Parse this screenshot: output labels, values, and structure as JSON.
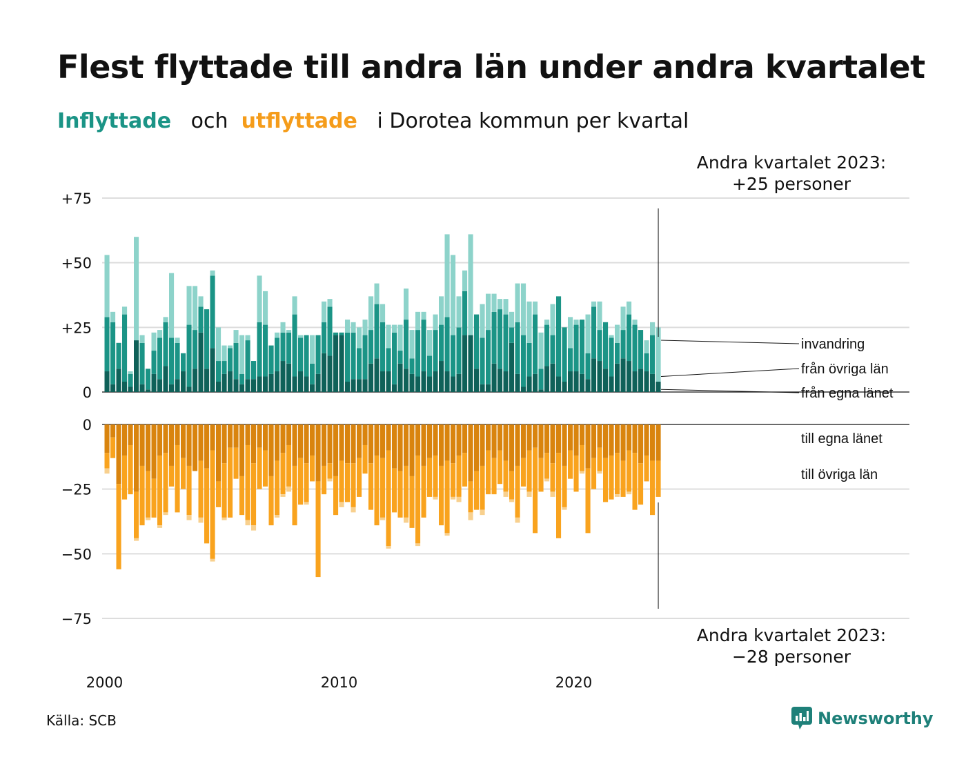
{
  "title": "Flest flyttade till andra län under andra kvartalet",
  "subtitle": {
    "in": "Inflyttade",
    "och": "och",
    "out": "utflyttade",
    "rest": "i Dorotea kommun per kvartal"
  },
  "source": "Källa: SCB",
  "logo": "Newsworthy",
  "colors": {
    "in_own": "#0f6159",
    "in_other": "#1b9486",
    "in_immig": "#8dd3ca",
    "out_own": "#d9840e",
    "out_other": "#f9a31e",
    "out_emig": "#f8d08e"
  },
  "chart_data": {
    "type": "bar",
    "subtype": "stacked, diverging (inflow up / outflow down)",
    "x_start": "2000 Q1",
    "x_labels": [
      "2000",
      "2010",
      "2020"
    ],
    "y_ticks_top": [
      "+75",
      "+50",
      "+25",
      "0"
    ],
    "y_ticks_bottom": [
      "0",
      "−25",
      "−50",
      "−75"
    ],
    "ylim_top": [
      0,
      75
    ],
    "ylim_bottom": [
      -75,
      0
    ],
    "legend_in": [
      "invandring",
      "från övriga län",
      "från egna länet"
    ],
    "legend_out": [
      "till egna länet",
      "till övriga län"
    ],
    "annotation_top": [
      "Andra kvartalet 2023:",
      "+25 personer"
    ],
    "annotation_bottom": [
      "Andra kvartalet 2023:",
      "−28 personer"
    ],
    "inflow": {
      "own": [
        8,
        3,
        9,
        4,
        2,
        20,
        3,
        1,
        7,
        5,
        10,
        3,
        5,
        8,
        2,
        9,
        23,
        9,
        17,
        4,
        7,
        8,
        5,
        3,
        5,
        5,
        6,
        6,
        7,
        8,
        12,
        11,
        6,
        8,
        6,
        3,
        7,
        15,
        14,
        22,
        22,
        4,
        5,
        5,
        5,
        11,
        13,
        8,
        8,
        3,
        11,
        9,
        7,
        6,
        8,
        6,
        8,
        12,
        8,
        6,
        7,
        22,
        22,
        9,
        3,
        3,
        11,
        9,
        8,
        19,
        7,
        2,
        6,
        7,
        1,
        10,
        11,
        6,
        4,
        8,
        8,
        7,
        5,
        13,
        12,
        9,
        6,
        11,
        13,
        12,
        8,
        9,
        8,
        7,
        4
      ],
      "other": [
        21,
        24,
        10,
        26,
        5,
        0,
        16,
        8,
        9,
        16,
        17,
        18,
        14,
        7,
        24,
        15,
        10,
        23,
        28,
        8,
        5,
        9,
        14,
        4,
        15,
        7,
        21,
        20,
        11,
        13,
        11,
        12,
        24,
        13,
        16,
        8,
        15,
        12,
        19,
        1,
        1,
        19,
        18,
        12,
        17,
        13,
        21,
        19,
        9,
        20,
        5,
        19,
        6,
        18,
        20,
        8,
        16,
        14,
        21,
        16,
        18,
        17,
        0,
        21,
        18,
        21,
        20,
        23,
        22,
        6,
        20,
        20,
        13,
        23,
        8,
        16,
        11,
        31,
        21,
        9,
        18,
        21,
        10,
        20,
        12,
        18,
        15,
        8,
        11,
        18,
        18,
        15,
        7,
        15,
        0
      ],
      "immig": [
        24,
        4,
        0,
        3,
        1,
        40,
        3,
        0,
        7,
        3,
        2,
        25,
        2,
        0,
        15,
        17,
        4,
        0,
        2,
        13,
        6,
        1,
        5,
        15,
        2,
        0,
        18,
        13,
        0,
        2,
        4,
        1,
        7,
        1,
        0,
        11,
        0,
        8,
        3,
        0,
        0,
        5,
        4,
        8,
        6,
        13,
        8,
        7,
        9,
        3,
        10,
        12,
        11,
        7,
        3,
        10,
        6,
        11,
        32,
        31,
        12,
        8,
        39,
        0,
        13,
        14,
        7,
        4,
        6,
        6,
        15,
        20,
        16,
        5,
        14,
        2,
        12,
        0,
        0,
        12,
        2,
        0,
        15,
        2,
        11,
        0,
        1,
        7,
        9,
        5,
        2,
        0,
        5,
        5,
        21
      ]
    },
    "outflow": {
      "own": [
        11,
        5,
        23,
        12,
        8,
        26,
        16,
        18,
        21,
        12,
        11,
        16,
        8,
        13,
        16,
        18,
        14,
        17,
        10,
        22,
        15,
        9,
        9,
        20,
        8,
        15,
        9,
        10,
        20,
        14,
        11,
        8,
        16,
        13,
        15,
        12,
        22,
        16,
        15,
        20,
        14,
        15,
        15,
        13,
        8,
        15,
        12,
        13,
        10,
        17,
        18,
        16,
        20,
        12,
        16,
        13,
        12,
        16,
        14,
        15,
        12,
        11,
        22,
        18,
        16,
        10,
        13,
        10,
        14,
        18,
        16,
        13,
        10,
        9,
        13,
        11,
        15,
        11,
        16,
        10,
        12,
        8,
        17,
        13,
        9,
        13,
        12,
        11,
        14,
        10,
        11,
        15,
        12,
        14,
        14
      ],
      "other": [
        6,
        8,
        33,
        17,
        19,
        18,
        23,
        18,
        15,
        27,
        23,
        8,
        26,
        12,
        19,
        0,
        22,
        29,
        42,
        10,
        21,
        27,
        12,
        15,
        29,
        24,
        16,
        14,
        19,
        21,
        16,
        16,
        23,
        18,
        15,
        10,
        37,
        11,
        6,
        15,
        16,
        15,
        17,
        15,
        11,
        18,
        27,
        23,
        37,
        17,
        18,
        20,
        20,
        34,
        20,
        15,
        16,
        23,
        28,
        13,
        16,
        13,
        12,
        15,
        17,
        17,
        14,
        13,
        12,
        11,
        20,
        11,
        16,
        33,
        13,
        10,
        11,
        33,
        16,
        11,
        14,
        10,
        25,
        12,
        9,
        17,
        17,
        16,
        14,
        16,
        22,
        16,
        10,
        21,
        14
      ],
      "emig": [
        2,
        0,
        0,
        0,
        0,
        1,
        0,
        1,
        0,
        1,
        1,
        0,
        0,
        0,
        2,
        0,
        2,
        0,
        1,
        0,
        1,
        0,
        0,
        0,
        2,
        2,
        0,
        0,
        0,
        1,
        1,
        2,
        0,
        0,
        1,
        0,
        0,
        0,
        1,
        0,
        2,
        0,
        2,
        0,
        0,
        0,
        0,
        1,
        1,
        0,
        0,
        2,
        0,
        1,
        0,
        0,
        1,
        0,
        1,
        1,
        2,
        0,
        3,
        0,
        2,
        0,
        0,
        0,
        2,
        1,
        2,
        0,
        2,
        0,
        0,
        1,
        2,
        0,
        1,
        0,
        0,
        1,
        0,
        0,
        1,
        0,
        0,
        1,
        0,
        1,
        0,
        0,
        0,
        0,
        0
      ]
    }
  }
}
